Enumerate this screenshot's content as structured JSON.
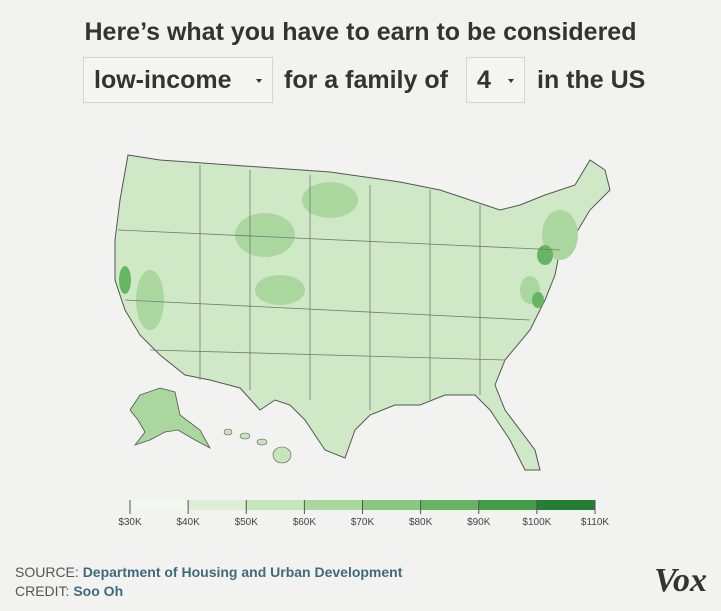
{
  "header": {
    "title": "Here’s what you have to earn to be considered",
    "income_level": "low-income",
    "phrase": "for a family of",
    "family_size": "4",
    "suffix": "in the US"
  },
  "legend": {
    "ticks": [
      {
        "value": 30000,
        "label": "$30K"
      },
      {
        "value": 40000,
        "label": "$40K"
      },
      {
        "value": 50000,
        "label": "$50K"
      },
      {
        "value": 60000,
        "label": "$60K"
      },
      {
        "value": 70000,
        "label": "$70K"
      },
      {
        "value": 80000,
        "label": "$80K"
      },
      {
        "value": 90000,
        "label": "$90K"
      },
      {
        "value": 100000,
        "label": "$100K"
      },
      {
        "value": 110000,
        "label": "$110K"
      }
    ],
    "colors": [
      "#f1f8ee",
      "#dcefd5",
      "#c6e5bb",
      "#a9d79e",
      "#8ac880",
      "#67b462",
      "#439c48",
      "#237f33"
    ]
  },
  "footer": {
    "source_label": "SOURCE:",
    "source": "Department of Housing and Urban Development",
    "credit_label": "CREDIT:",
    "credit": "Soo Oh",
    "logo": "Vox"
  }
}
